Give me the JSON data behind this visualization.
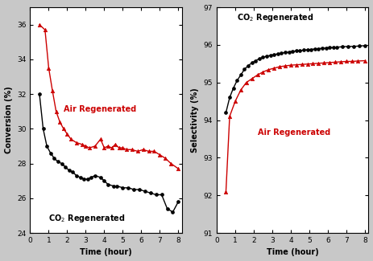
{
  "left": {
    "xlabel": "Time (hour)",
    "ylabel": "Conversion (%)",
    "ylim": [
      24,
      37
    ],
    "xlim": [
      0,
      8.2
    ],
    "yticks": [
      24,
      26,
      28,
      30,
      32,
      34,
      36
    ],
    "xticks": [
      0,
      1,
      2,
      3,
      4,
      5,
      6,
      7,
      8
    ],
    "co2_label": "CO$_2$ Regenerated",
    "air_label": "Air Regenerated",
    "co2_color": "#000000",
    "air_color": "#cc0000",
    "co2_x": [
      0.5,
      0.7,
      0.9,
      1.1,
      1.3,
      1.5,
      1.7,
      1.9,
      2.1,
      2.3,
      2.5,
      2.7,
      2.9,
      3.1,
      3.3,
      3.5,
      3.8,
      4.0,
      4.2,
      4.5,
      4.7,
      5.0,
      5.3,
      5.6,
      5.9,
      6.2,
      6.5,
      6.8,
      7.1,
      7.4,
      7.7,
      8.0
    ],
    "co2_y": [
      32.0,
      30.0,
      29.0,
      28.6,
      28.3,
      28.1,
      28.0,
      27.8,
      27.6,
      27.5,
      27.3,
      27.2,
      27.1,
      27.1,
      27.2,
      27.3,
      27.2,
      27.0,
      26.8,
      26.7,
      26.7,
      26.6,
      26.6,
      26.5,
      26.5,
      26.4,
      26.3,
      26.2,
      26.2,
      25.4,
      25.2,
      25.8
    ],
    "air_x": [
      0.5,
      0.8,
      1.0,
      1.2,
      1.4,
      1.6,
      1.8,
      2.0,
      2.2,
      2.5,
      2.8,
      3.0,
      3.2,
      3.5,
      3.8,
      4.0,
      4.2,
      4.4,
      4.6,
      4.8,
      5.0,
      5.2,
      5.5,
      5.8,
      6.1,
      6.4,
      6.7,
      7.0,
      7.3,
      7.6,
      8.0
    ],
    "air_y": [
      36.0,
      35.7,
      33.5,
      32.2,
      31.0,
      30.4,
      30.0,
      29.7,
      29.4,
      29.2,
      29.1,
      29.0,
      28.9,
      29.0,
      29.4,
      28.9,
      29.0,
      28.9,
      29.1,
      28.9,
      28.9,
      28.8,
      28.8,
      28.7,
      28.8,
      28.7,
      28.7,
      28.5,
      28.3,
      28.0,
      27.7
    ]
  },
  "right": {
    "xlabel": "Time (hour)",
    "ylabel": "Selectivity (%)",
    "ylim": [
      91,
      97
    ],
    "xlim": [
      0,
      8.2
    ],
    "yticks": [
      91,
      92,
      93,
      94,
      95,
      96,
      97
    ],
    "xticks": [
      0,
      1,
      2,
      3,
      4,
      5,
      6,
      7,
      8
    ],
    "co2_label": "CO$_2$ Regenerated",
    "air_label": "Air Regenerated",
    "co2_color": "#000000",
    "air_color": "#cc0000",
    "co2_x": [
      0.5,
      0.7,
      0.9,
      1.1,
      1.3,
      1.5,
      1.7,
      1.9,
      2.1,
      2.3,
      2.5,
      2.7,
      2.9,
      3.1,
      3.3,
      3.5,
      3.7,
      3.9,
      4.1,
      4.3,
      4.5,
      4.7,
      4.9,
      5.1,
      5.3,
      5.5,
      5.7,
      5.9,
      6.1,
      6.3,
      6.5,
      6.8,
      7.1,
      7.4,
      7.7,
      8.0
    ],
    "co2_y": [
      94.2,
      94.6,
      94.85,
      95.05,
      95.2,
      95.35,
      95.45,
      95.52,
      95.58,
      95.63,
      95.67,
      95.7,
      95.72,
      95.74,
      95.76,
      95.78,
      95.8,
      95.81,
      95.83,
      95.84,
      95.85,
      95.86,
      95.87,
      95.88,
      95.89,
      95.9,
      95.91,
      95.92,
      95.93,
      95.93,
      95.94,
      95.95,
      95.96,
      95.96,
      95.97,
      95.98
    ],
    "air_x": [
      0.5,
      0.7,
      1.0,
      1.3,
      1.6,
      1.9,
      2.2,
      2.5,
      2.8,
      3.1,
      3.4,
      3.7,
      4.0,
      4.3,
      4.6,
      4.9,
      5.2,
      5.5,
      5.8,
      6.1,
      6.4,
      6.7,
      7.0,
      7.3,
      7.6,
      8.0
    ],
    "air_y": [
      92.1,
      94.1,
      94.5,
      94.8,
      95.0,
      95.1,
      95.2,
      95.28,
      95.34,
      95.38,
      95.42,
      95.44,
      95.46,
      95.47,
      95.48,
      95.49,
      95.5,
      95.51,
      95.52,
      95.53,
      95.54,
      95.55,
      95.56,
      95.56,
      95.57,
      95.58
    ]
  },
  "fig_bg": "#c8c8c8",
  "plot_bg": "#ffffff"
}
